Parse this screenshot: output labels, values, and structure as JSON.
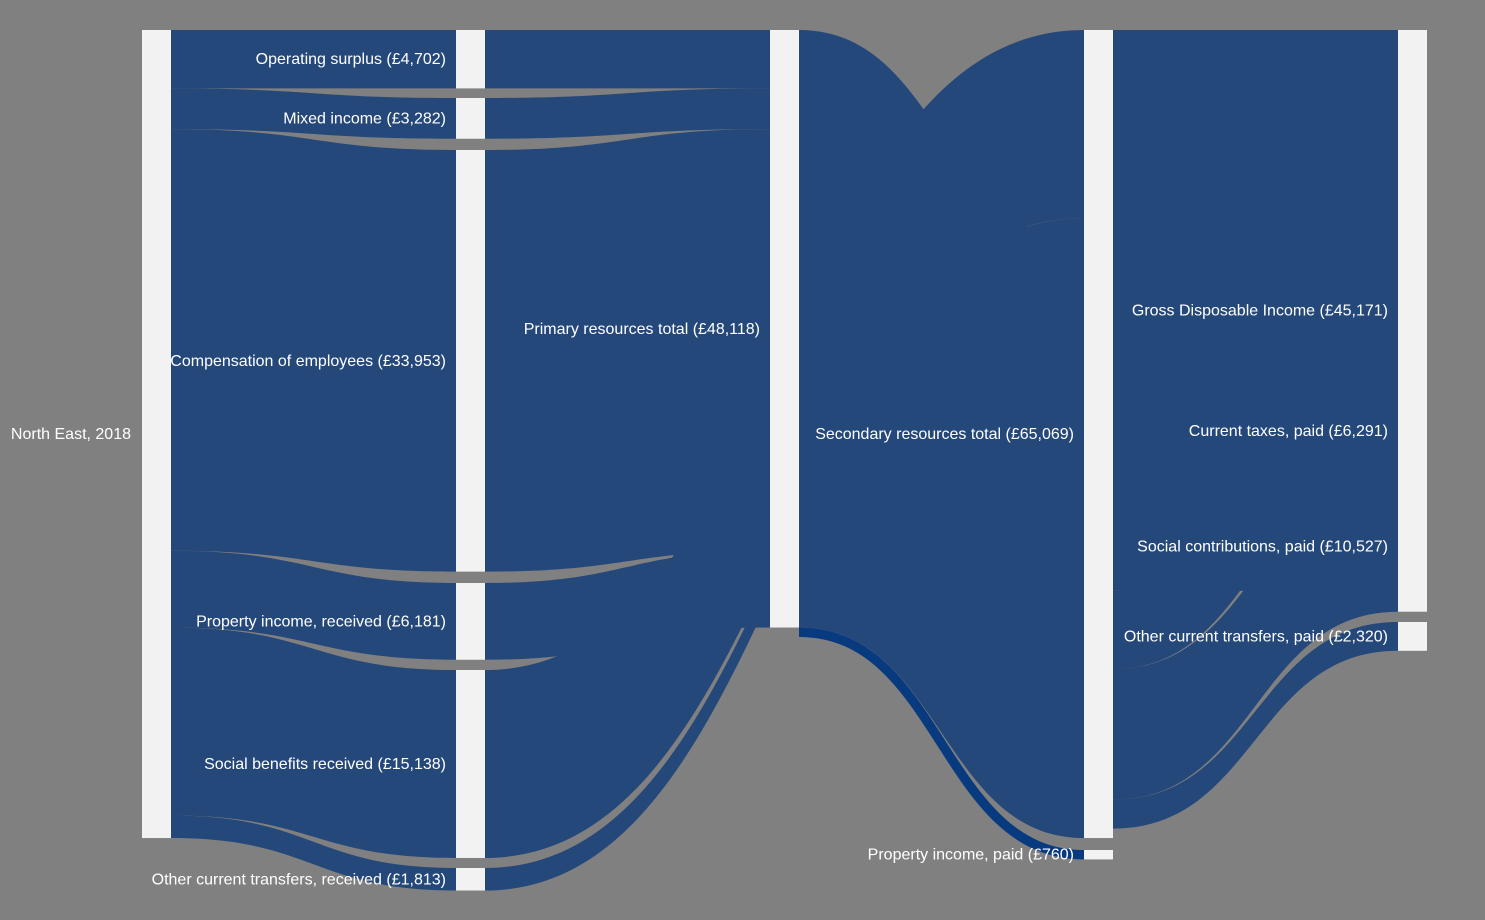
{
  "chart_data": {
    "type": "sankey",
    "colors": {
      "background": "#808080",
      "node": "#f2f2f2",
      "flow": "#25487a",
      "highlight_flow": "#083a80",
      "label": "#ffffff"
    },
    "nodes": [
      {
        "id": "ne",
        "label": "North East, 2018",
        "column": 0
      },
      {
        "id": "os",
        "label": "Operating surplus (£4,702)",
        "value": 4702,
        "column": 1
      },
      {
        "id": "mi",
        "label": "Mixed income (£3,282)",
        "value": 3282,
        "column": 1
      },
      {
        "id": "ce",
        "label": "Compensation of employees (£33,953)",
        "value": 33953,
        "column": 1
      },
      {
        "id": "pir",
        "label": "Property income, received (£6,181)",
        "value": 6181,
        "column": 1
      },
      {
        "id": "sbr",
        "label": "Social benefits received (£15,138)",
        "value": 15138,
        "column": 1
      },
      {
        "id": "octr",
        "label": "Other current transfers, received (£1,813)",
        "value": 1813,
        "column": 1
      },
      {
        "id": "prt",
        "label": "Primary resources total (£48,118)",
        "value": 48118,
        "column": 2
      },
      {
        "id": "srt",
        "label": "Secondary resources total (£65,069)",
        "value": 65069,
        "column": 3
      },
      {
        "id": "pip",
        "label": "Property income, paid (£760)",
        "value": 760,
        "column": 3
      },
      {
        "id": "gdi",
        "label": "Gross Disposable Income (£45,171)",
        "value": 45171,
        "column": 4
      },
      {
        "id": "ctp",
        "label": "Current taxes, paid (£6,291)",
        "value": 6291,
        "column": 4
      },
      {
        "id": "scp",
        "label": "Social contributions, paid (£10,527)",
        "value": 10527,
        "column": 4
      },
      {
        "id": "octp",
        "label": "Other current transfers, paid (£2,320)",
        "value": 2320,
        "column": 4
      }
    ],
    "links": [
      {
        "source": "ne",
        "target": "os",
        "value": 4702
      },
      {
        "source": "ne",
        "target": "mi",
        "value": 3282
      },
      {
        "source": "ne",
        "target": "ce",
        "value": 33953
      },
      {
        "source": "ne",
        "target": "pir",
        "value": 6181
      },
      {
        "source": "ne",
        "target": "sbr",
        "value": 15138
      },
      {
        "source": "ne",
        "target": "octr",
        "value": 1813
      },
      {
        "source": "os",
        "target": "prt",
        "value": 4702
      },
      {
        "source": "mi",
        "target": "prt",
        "value": 3282
      },
      {
        "source": "ce",
        "target": "prt",
        "value": 33953
      },
      {
        "source": "pir",
        "target": "prt",
        "value": 6181
      },
      {
        "source": "sbr",
        "target": "srt",
        "value": 15138
      },
      {
        "source": "octr",
        "target": "srt",
        "value": 1813
      },
      {
        "source": "prt",
        "target": "srt",
        "value": 48118
      },
      {
        "source": "prt",
        "target": "pip",
        "value": 760,
        "highlight": true
      },
      {
        "source": "srt",
        "target": "gdi",
        "value": 45171
      },
      {
        "source": "srt",
        "target": "ctp",
        "value": 6291
      },
      {
        "source": "srt",
        "target": "scp",
        "value": 10527
      },
      {
        "source": "srt",
        "target": "octp",
        "value": 2320
      }
    ]
  }
}
